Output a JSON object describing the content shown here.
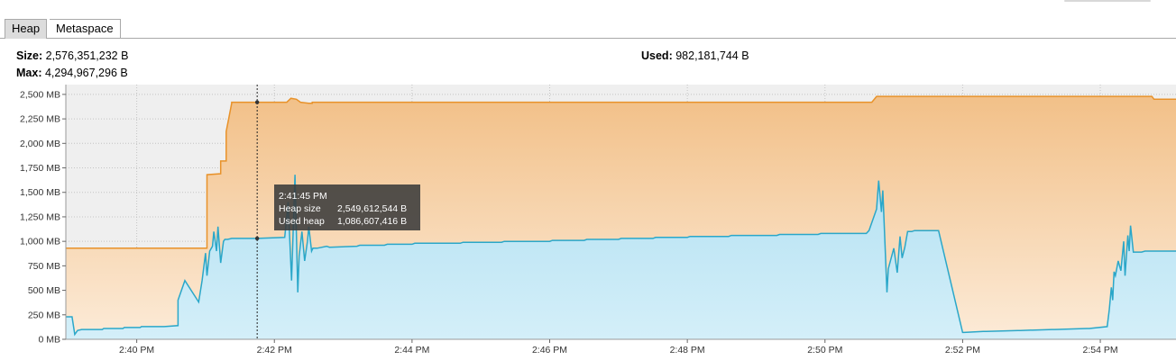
{
  "tabs": [
    {
      "label": "Heap",
      "selected": true
    },
    {
      "label": "Metaspace",
      "selected": false
    }
  ],
  "stats": {
    "size_label": "Size:",
    "size_value": "2,576,351,232 B",
    "max_label": "Max:",
    "max_value": "4,294,967,296 B",
    "used_label": "Used:",
    "used_value": "982,181,744 B"
  },
  "tooltip": {
    "time": "2:41:45 PM",
    "heap_size_label": "Heap size",
    "heap_size_value": "2,549,612,544 B",
    "used_heap_label": "Used heap",
    "used_heap_value": "1,086,607,416 B"
  },
  "colors": {
    "heap_size_line": "#e8922a",
    "used_heap_line": "#2aa7c9",
    "plot_background_before_start": "#efefef"
  },
  "chart_data": {
    "type": "area",
    "title": "",
    "xlabel": "",
    "ylabel": "",
    "x_unit": "minutes (clock time, 2:40 PM = 40.0)",
    "xlim": [
      38.97,
      55.1
    ],
    "ylim": [
      0,
      2600
    ],
    "y_unit": "MB",
    "grid": true,
    "x_ticks": [
      {
        "v": 40,
        "label": "2:40 PM"
      },
      {
        "v": 42,
        "label": "2:42 PM"
      },
      {
        "v": 44,
        "label": "2:44 PM"
      },
      {
        "v": 46,
        "label": "2:46 PM"
      },
      {
        "v": 48,
        "label": "2:48 PM"
      },
      {
        "v": 50,
        "label": "2:50 PM"
      },
      {
        "v": 52,
        "label": "2:52 PM"
      },
      {
        "v": 54,
        "label": "2:54 PM"
      }
    ],
    "y_ticks": [
      {
        "v": 0,
        "label": "0 MB"
      },
      {
        "v": 250,
        "label": "250 MB"
      },
      {
        "v": 500,
        "label": "500 MB"
      },
      {
        "v": 750,
        "label": "750 MB"
      },
      {
        "v": 1000,
        "label": "1,000 MB"
      },
      {
        "v": 1250,
        "label": "1,250 MB"
      },
      {
        "v": 1500,
        "label": "1,500 MB"
      },
      {
        "v": 1750,
        "label": "1,750 MB"
      },
      {
        "v": 2000,
        "label": "2,000 MB"
      },
      {
        "v": 2250,
        "label": "2,250 MB"
      },
      {
        "v": 2500,
        "label": "2,500 MB"
      }
    ],
    "marker_time": 41.75,
    "series": [
      {
        "key": "heap_size",
        "name": "Heap size",
        "x": [
          38.97,
          40.9,
          41.02,
          41.02,
          41.22,
          41.22,
          41.3,
          41.3,
          41.38,
          41.38,
          42.18,
          42.24,
          42.32,
          42.38,
          42.5,
          42.55,
          42.55,
          50.68,
          50.75,
          54.75,
          54.78,
          55.1
        ],
        "y": [
          930,
          930,
          930,
          1680,
          1690,
          1820,
          1820,
          2120,
          2410,
          2420,
          2420,
          2460,
          2450,
          2420,
          2410,
          2410,
          2420,
          2420,
          2480,
          2480,
          2450,
          2450
        ]
      },
      {
        "key": "used_heap",
        "name": "Used heap",
        "x": [
          38.97,
          39.06,
          39.1,
          39.14,
          39.2,
          39.5,
          39.52,
          39.8,
          39.82,
          40.05,
          40.07,
          40.4,
          40.6,
          40.6,
          40.7,
          40.9,
          40.95,
          41.0,
          41.02,
          41.06,
          41.1,
          41.12,
          41.16,
          41.18,
          41.22,
          41.26,
          41.28,
          41.32,
          41.38,
          41.42,
          41.75,
          42.15,
          42.2,
          42.25,
          42.3,
          42.34,
          42.36,
          42.4,
          42.44,
          42.48,
          42.5,
          42.54,
          42.56,
          42.62,
          42.76,
          42.8,
          43.2,
          43.24,
          43.6,
          43.64,
          44.0,
          44.04,
          44.7,
          44.74,
          45.3,
          45.34,
          46.0,
          46.04,
          46.5,
          46.54,
          47.0,
          47.04,
          47.5,
          47.54,
          48.0,
          48.04,
          48.6,
          48.64,
          49.3,
          49.34,
          49.9,
          49.94,
          50.6,
          50.64,
          50.75,
          50.78,
          50.82,
          50.84,
          50.9,
          50.92,
          51.0,
          51.05,
          51.09,
          51.12,
          51.16,
          51.2,
          51.23,
          51.26,
          51.3,
          51.6,
          51.65,
          52.0,
          52.02,
          52.3,
          52.34,
          52.8,
          52.84,
          53.3,
          53.34,
          53.8,
          53.84,
          54.1,
          54.13,
          54.16,
          54.18,
          54.2,
          54.22,
          54.26,
          54.3,
          54.34,
          54.36,
          54.4,
          54.42,
          54.44,
          54.48,
          54.5,
          54.6,
          54.65,
          54.7,
          54.72,
          55.1
        ],
        "y": [
          230,
          230,
          50,
          90,
          100,
          100,
          110,
          110,
          120,
          120,
          130,
          130,
          140,
          400,
          600,
          380,
          600,
          880,
          650,
          900,
          950,
          1100,
          900,
          1150,
          780,
          1000,
          1020,
          1020,
          1030,
          1030,
          1030,
          1040,
          1400,
          600,
          1680,
          480,
          850,
          1100,
          800,
          1000,
          1150,
          900,
          930,
          930,
          950,
          940,
          950,
          960,
          960,
          970,
          970,
          980,
          980,
          990,
          990,
          1000,
          1000,
          1010,
          1010,
          1020,
          1020,
          1030,
          1030,
          1040,
          1040,
          1050,
          1050,
          1060,
          1060,
          1070,
          1070,
          1080,
          1080,
          1110,
          1330,
          1620,
          1300,
          1520,
          480,
          720,
          930,
          680,
          1050,
          830,
          940,
          1100,
          1100,
          1100,
          1110,
          1110,
          1110,
          70,
          70,
          80,
          80,
          90,
          90,
          100,
          100,
          110,
          110,
          130,
          300,
          530,
          400,
          690,
          650,
          800,
          700,
          1000,
          650,
          1060,
          900,
          1160,
          890,
          890,
          890,
          900,
          900,
          900,
          900
        ]
      }
    ]
  }
}
